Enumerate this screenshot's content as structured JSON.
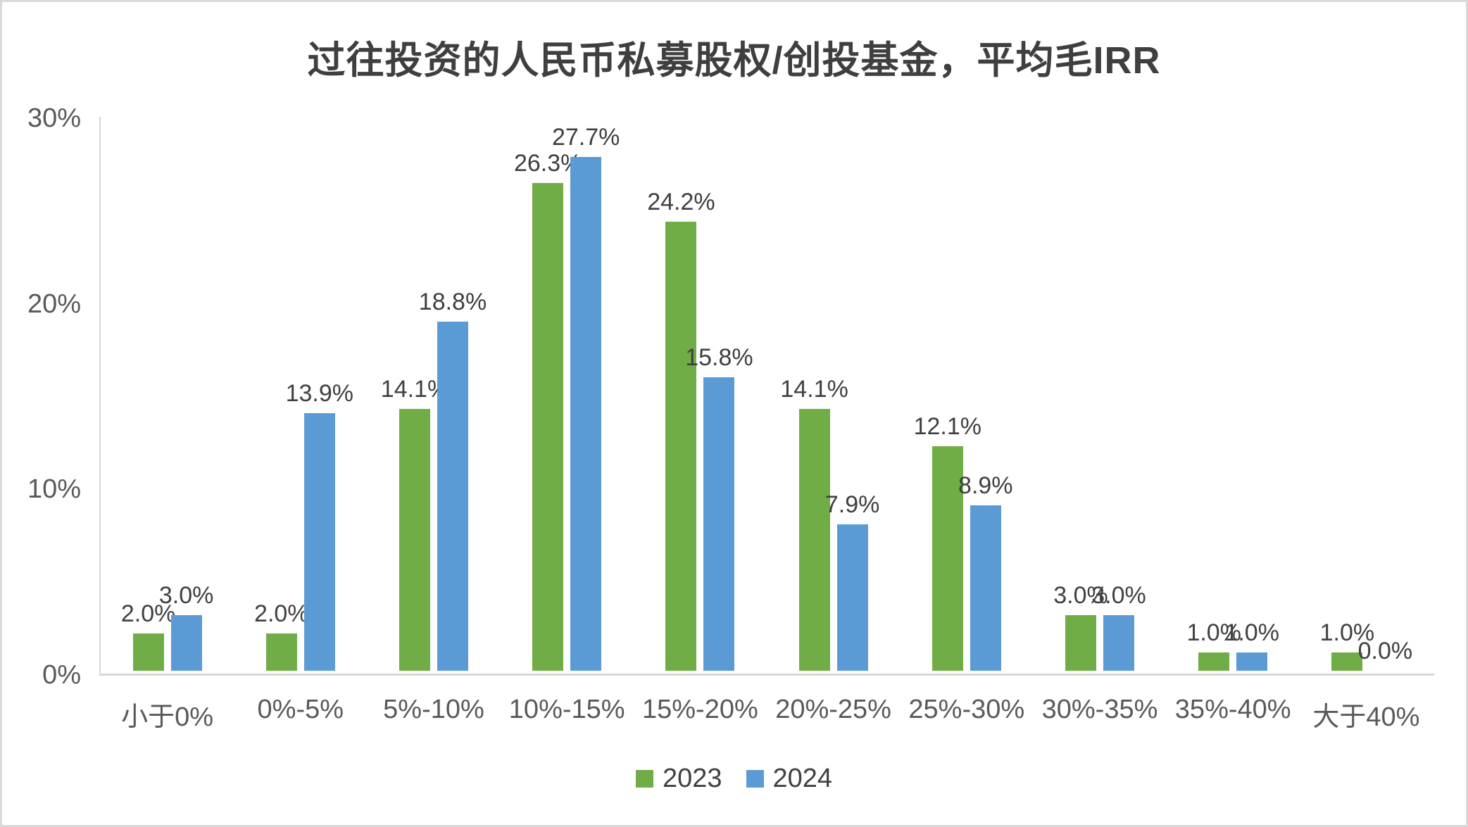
{
  "chart_data": {
    "type": "bar",
    "title": "过往投资的人民币私募股权/创投基金，平均毛IRR",
    "categories": [
      "小于0%",
      "0%-5%",
      "5%-10%",
      "10%-15%",
      "15%-20%",
      "20%-25%",
      "25%-30%",
      "30%-35%",
      "35%-40%",
      "大于40%"
    ],
    "series": [
      {
        "name": "2023",
        "color": "#70AD47",
        "values": [
          2.0,
          2.0,
          14.1,
          26.3,
          24.2,
          14.1,
          12.1,
          3.0,
          1.0,
          1.0
        ]
      },
      {
        "name": "2024",
        "color": "#5B9BD5",
        "values": [
          3.0,
          13.9,
          18.8,
          27.7,
          15.8,
          7.9,
          8.9,
          3.0,
          1.0,
          0.0
        ]
      }
    ],
    "data_labels": {
      "series_2023": [
        "2.0%",
        "2.0%",
        "14.1%",
        "26.3%",
        "24.2%",
        "14.1%",
        "12.1%",
        "3.0%",
        "1.0%",
        "1.0%"
      ],
      "series_2024": [
        "3.0%",
        "13.9%",
        "18.8%",
        "27.7%",
        "15.8%",
        "7.9%",
        "8.9%",
        "3.0%",
        "1.0%",
        "0.0%"
      ]
    },
    "xlabel": "",
    "ylabel": "",
    "ylim": [
      0,
      30
    ],
    "y_ticks": [
      0,
      10,
      20,
      30
    ],
    "y_tick_labels": [
      "0%",
      "10%",
      "20%",
      "30%"
    ],
    "grid": false,
    "legend_position": "bottom"
  },
  "colors": {
    "green_2023": "#70AD47",
    "blue_2024": "#5B9BD5",
    "axis_line": "#D6D6D6",
    "axis_text": "#595959",
    "label_text": "#404040",
    "border": "#D9D9D9",
    "background": "#FFFFFF"
  }
}
